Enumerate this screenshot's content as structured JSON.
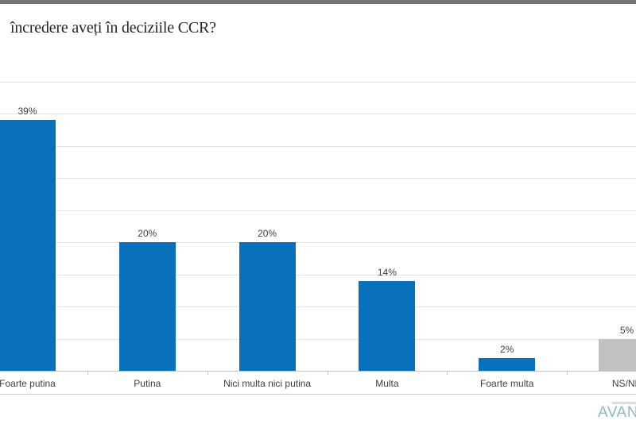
{
  "page": {
    "title_fragment": "încredere aveți în deciziile CCR?"
  },
  "chart_data": {
    "type": "bar",
    "title": "încredere aveți în deciziile CCR?",
    "categories": [
      "Foarte putina",
      "Putina",
      "Nici multa nici putina",
      "Multa",
      "Foarte multa",
      "NS/NR"
    ],
    "values": [
      39,
      20,
      20,
      14,
      2,
      5
    ],
    "value_labels": [
      "39%",
      "20%",
      "20%",
      "14%",
      "2%",
      "5%"
    ],
    "bar_colors": [
      "#0971bb",
      "#0971bb",
      "#0971bb",
      "#0971bb",
      "#0971bb",
      "#c1c1c1"
    ],
    "xlabel": "",
    "ylabel": "",
    "ylim": [
      0,
      45
    ],
    "gridline_step_pct": 5,
    "grid": true,
    "legend": false,
    "accent_blue": "#0971bb",
    "neutral_gray": "#c1c1c1"
  },
  "footer": {
    "logo_text": "AVAN",
    "logo_color": "#8fb9cb"
  }
}
